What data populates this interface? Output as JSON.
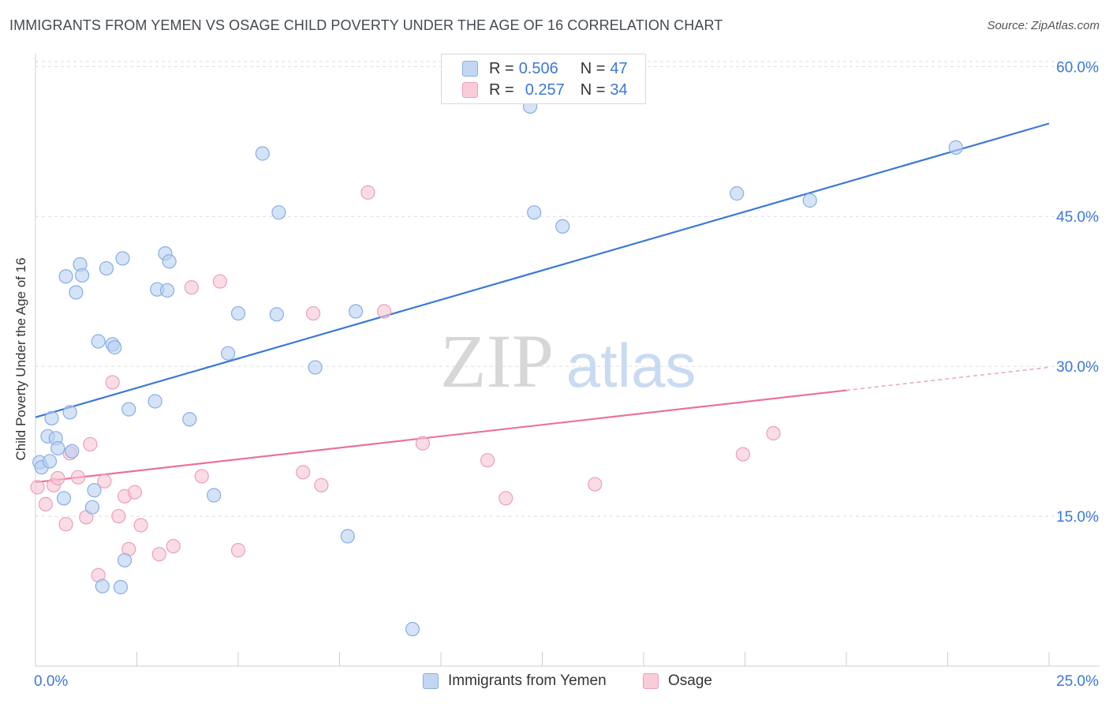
{
  "title": "IMMIGRANTS FROM YEMEN VS OSAGE CHILD POVERTY UNDER THE AGE OF 16 CORRELATION CHART",
  "source": "Source: ZipAtlas.com",
  "watermark": {
    "zip": "ZIP",
    "atlas": "atlas"
  },
  "legend": {
    "blue": {
      "r_label": "R = ",
      "r_value": "0.506",
      "n_label": "N = ",
      "n_value": "47"
    },
    "pink": {
      "r_label": "R = ",
      "r_value": "0.257",
      "n_label": "N = ",
      "n_value": "34"
    }
  },
  "colors": {
    "blue_fill": "#b9d1f2",
    "blue_stroke": "#86aee6",
    "blue_line": "#3b78d8",
    "pink_fill": "#f7c5d4",
    "pink_stroke": "#ee9fb8",
    "pink_line": "#e8739a",
    "tick_text": "#3b78d8"
  },
  "chart_data": {
    "type": "scatter",
    "title": "IMMIGRANTS FROM YEMEN VS OSAGE CHILD POVERTY UNDER THE AGE OF 16 CORRELATION CHART",
    "xlabel": "",
    "ylabel": "Child Poverty Under the Age of 16",
    "xlim": [
      0,
      25
    ],
    "ylim": [
      0,
      63
    ],
    "x_tick_labels": [
      "0.0%",
      "25.0%"
    ],
    "y_ticks": [
      15,
      30,
      45,
      60
    ],
    "y_tick_labels": [
      "15.0%",
      "30.0%",
      "45.0%",
      "60.0%"
    ],
    "grid": true,
    "legend_position": "top-center",
    "series": [
      {
        "name": "Immigrants from Yemen",
        "color": "#86aee6",
        "points": [
          [
            0.1,
            20.4
          ],
          [
            0.15,
            19.9
          ],
          [
            0.3,
            23.0
          ],
          [
            0.35,
            20.5
          ],
          [
            0.4,
            24.8
          ],
          [
            0.5,
            22.8
          ],
          [
            0.55,
            21.8
          ],
          [
            0.7,
            16.8
          ],
          [
            0.75,
            39.0
          ],
          [
            0.85,
            25.4
          ],
          [
            0.9,
            21.5
          ],
          [
            1.0,
            37.4
          ],
          [
            1.1,
            40.2
          ],
          [
            1.15,
            39.1
          ],
          [
            1.4,
            15.9
          ],
          [
            1.45,
            17.6
          ],
          [
            1.55,
            32.5
          ],
          [
            1.65,
            8.0
          ],
          [
            1.75,
            39.8
          ],
          [
            1.9,
            32.2
          ],
          [
            1.95,
            31.9
          ],
          [
            2.1,
            7.9
          ],
          [
            2.15,
            40.8
          ],
          [
            2.2,
            10.6
          ],
          [
            2.3,
            25.7
          ],
          [
            2.95,
            26.5
          ],
          [
            3.0,
            37.7
          ],
          [
            3.2,
            41.3
          ],
          [
            3.25,
            37.6
          ],
          [
            3.3,
            40.5
          ],
          [
            3.8,
            24.7
          ],
          [
            4.4,
            17.1
          ],
          [
            4.75,
            31.3
          ],
          [
            5.0,
            35.3
          ],
          [
            5.6,
            51.3
          ],
          [
            5.95,
            35.2
          ],
          [
            6.0,
            45.4
          ],
          [
            6.9,
            29.9
          ],
          [
            7.7,
            13.0
          ],
          [
            7.9,
            35.5
          ],
          [
            9.3,
            3.7
          ],
          [
            12.2,
            56.0
          ],
          [
            12.3,
            45.4
          ],
          [
            13.0,
            44.0
          ],
          [
            17.3,
            47.3
          ],
          [
            19.1,
            46.6
          ],
          [
            22.7,
            51.9
          ]
        ],
        "trend": {
          "x": [
            0,
            25
          ],
          "y": [
            24.9,
            54.3
          ]
        }
      },
      {
        "name": "Osage",
        "color": "#ee9fb8",
        "points": [
          [
            0.05,
            17.9
          ],
          [
            0.25,
            16.2
          ],
          [
            0.45,
            18.1
          ],
          [
            0.55,
            18.8
          ],
          [
            0.75,
            14.2
          ],
          [
            0.85,
            21.3
          ],
          [
            1.05,
            18.9
          ],
          [
            1.25,
            14.9
          ],
          [
            1.35,
            22.2
          ],
          [
            1.55,
            9.1
          ],
          [
            1.7,
            18.5
          ],
          [
            1.9,
            28.4
          ],
          [
            2.05,
            15.0
          ],
          [
            2.2,
            17.0
          ],
          [
            2.3,
            11.7
          ],
          [
            2.45,
            17.4
          ],
          [
            2.6,
            14.1
          ],
          [
            3.05,
            11.2
          ],
          [
            3.4,
            12.0
          ],
          [
            3.85,
            37.9
          ],
          [
            4.1,
            19.0
          ],
          [
            4.55,
            38.5
          ],
          [
            5.0,
            11.6
          ],
          [
            6.6,
            19.4
          ],
          [
            6.85,
            35.3
          ],
          [
            7.05,
            18.1
          ],
          [
            8.2,
            47.4
          ],
          [
            8.6,
            35.5
          ],
          [
            9.55,
            22.3
          ],
          [
            11.15,
            20.6
          ],
          [
            11.6,
            16.8
          ],
          [
            13.8,
            18.2
          ],
          [
            17.45,
            21.2
          ],
          [
            18.2,
            23.3
          ]
        ],
        "trend": {
          "x": [
            0,
            20
          ],
          "y": [
            18.4,
            27.6
          ]
        },
        "trend_dashed": {
          "x": [
            20,
            25
          ],
          "y": [
            27.6,
            29.9
          ]
        }
      }
    ]
  },
  "bottom_legend": {
    "blue": "Immigrants from Yemen",
    "pink": "Osage"
  }
}
